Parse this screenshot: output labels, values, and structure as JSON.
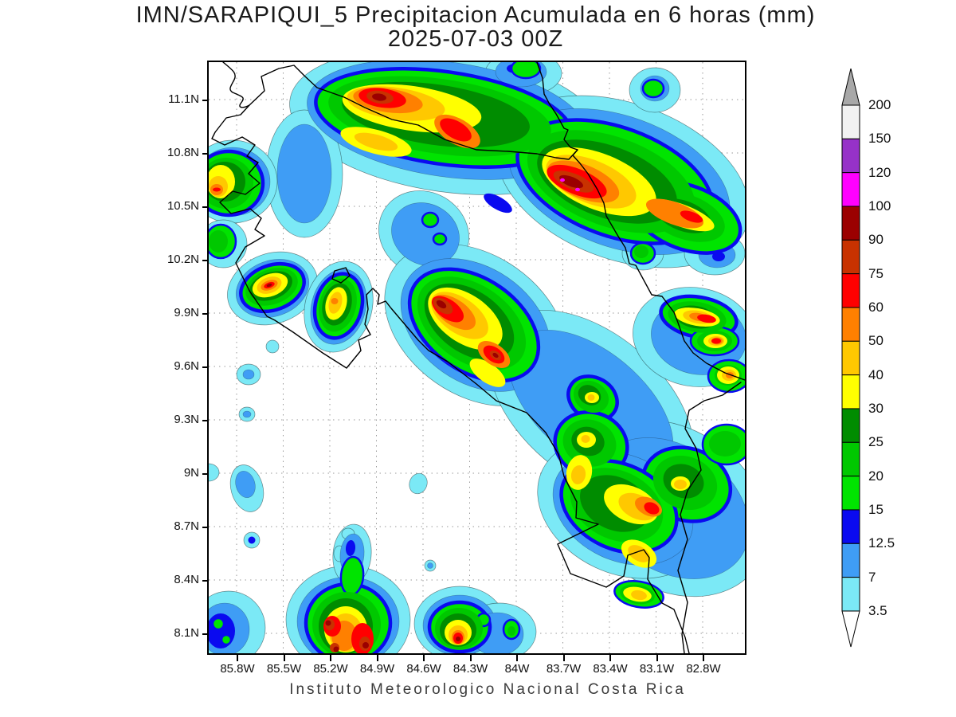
{
  "title": {
    "line1": "IMN/SARAPIQUI_5 Precipitacion Acumulada en 6 horas (mm)",
    "line2": "2025-07-03 00Z"
  },
  "footer": "Instituto Meteorologico Nacional Costa Rica",
  "axes": {
    "lat_labels": [
      "11.1N",
      "10.8N",
      "10.5N",
      "10.2N",
      "9.9N",
      "9.6N",
      "9.3N",
      "9N",
      "8.7N",
      "8.4N",
      "8.1N"
    ],
    "lon_labels": [
      "85.8W",
      "85.5W",
      "85.2W",
      "84.9W",
      "84.6W",
      "84.3W",
      "84W",
      "83.7W",
      "83.4W",
      "83.1W",
      "82.8W"
    ]
  },
  "colorbar": {
    "labels_top_to_bottom": [
      "200",
      "150",
      "120",
      "100",
      "90",
      "75",
      "60",
      "50",
      "40",
      "30",
      "25",
      "20",
      "15",
      "12.5",
      "7",
      "3.5"
    ],
    "segment_colors_top_to_bottom": [
      "#f2f2f2",
      "#9632c8",
      "#ff00ff",
      "#9b0000",
      "#c83200",
      "#ff0000",
      "#ff8000",
      "#ffc800",
      "#ffff00",
      "#008c00",
      "#00c800",
      "#00e400",
      "#0a0af0",
      "#3f9df5",
      "#7be9f6"
    ],
    "over_arrow_color": "#a8a8a8",
    "under_arrow_color": "#ffffff"
  },
  "chart_data": {
    "type": "heatmap",
    "title": "IMN/SARAPIQUI_5 Precipitacion Acumulada en 6 horas (mm)",
    "valid_time": "2025-07-03 00Z",
    "units": "mm",
    "contour_levels": [
      3.5,
      7,
      12.5,
      15,
      20,
      25,
      30,
      40,
      50,
      60,
      75,
      90,
      100,
      120,
      150,
      200
    ],
    "palette_low_to_high": [
      "#7be9f6",
      "#3f9df5",
      "#0a0af0",
      "#00e400",
      "#00c800",
      "#008c00",
      "#ffff00",
      "#ffc800",
      "#ff8000",
      "#ff0000",
      "#c83200",
      "#9b0000",
      "#ff00ff",
      "#9632c8",
      "#f2f2f2"
    ],
    "lon_axis_w_range": [
      85.8,
      82.8
    ],
    "lat_axis_n_range": [
      8.1,
      11.1
    ],
    "grid_interval_deg": 0.3,
    "grid_style": "dotted gray",
    "region": "Costa Rica",
    "max_regions": [
      {
        "lon_w": 84.86,
        "lat_n": 11.1,
        "peak_mm": "90-100"
      },
      {
        "lon_w": 84.0,
        "lat_n": 10.9,
        "peak_mm": "60-75"
      },
      {
        "lon_w": 83.5,
        "lat_n": 10.58,
        "peak_mm": "100-120"
      },
      {
        "lon_w": 85.58,
        "lat_n": 10.04,
        "peak_mm": "90-100"
      },
      {
        "lon_w": 85.16,
        "lat_n": 9.95,
        "peak_mm": "50-60"
      },
      {
        "lon_w": 84.48,
        "lat_n": 9.87,
        "peak_mm": "90-100"
      },
      {
        "lon_w": 82.8,
        "lat_n": 9.87,
        "peak_mm": "60-75"
      },
      {
        "lon_w": 83.15,
        "lat_n": 8.8,
        "peak_mm": "60-75"
      },
      {
        "lon_w": 85.14,
        "lat_n": 8.14,
        "peak_mm": "90-100"
      },
      {
        "lon_w": 84.37,
        "lat_n": 8.1,
        "peak_mm": "90-100"
      }
    ]
  }
}
